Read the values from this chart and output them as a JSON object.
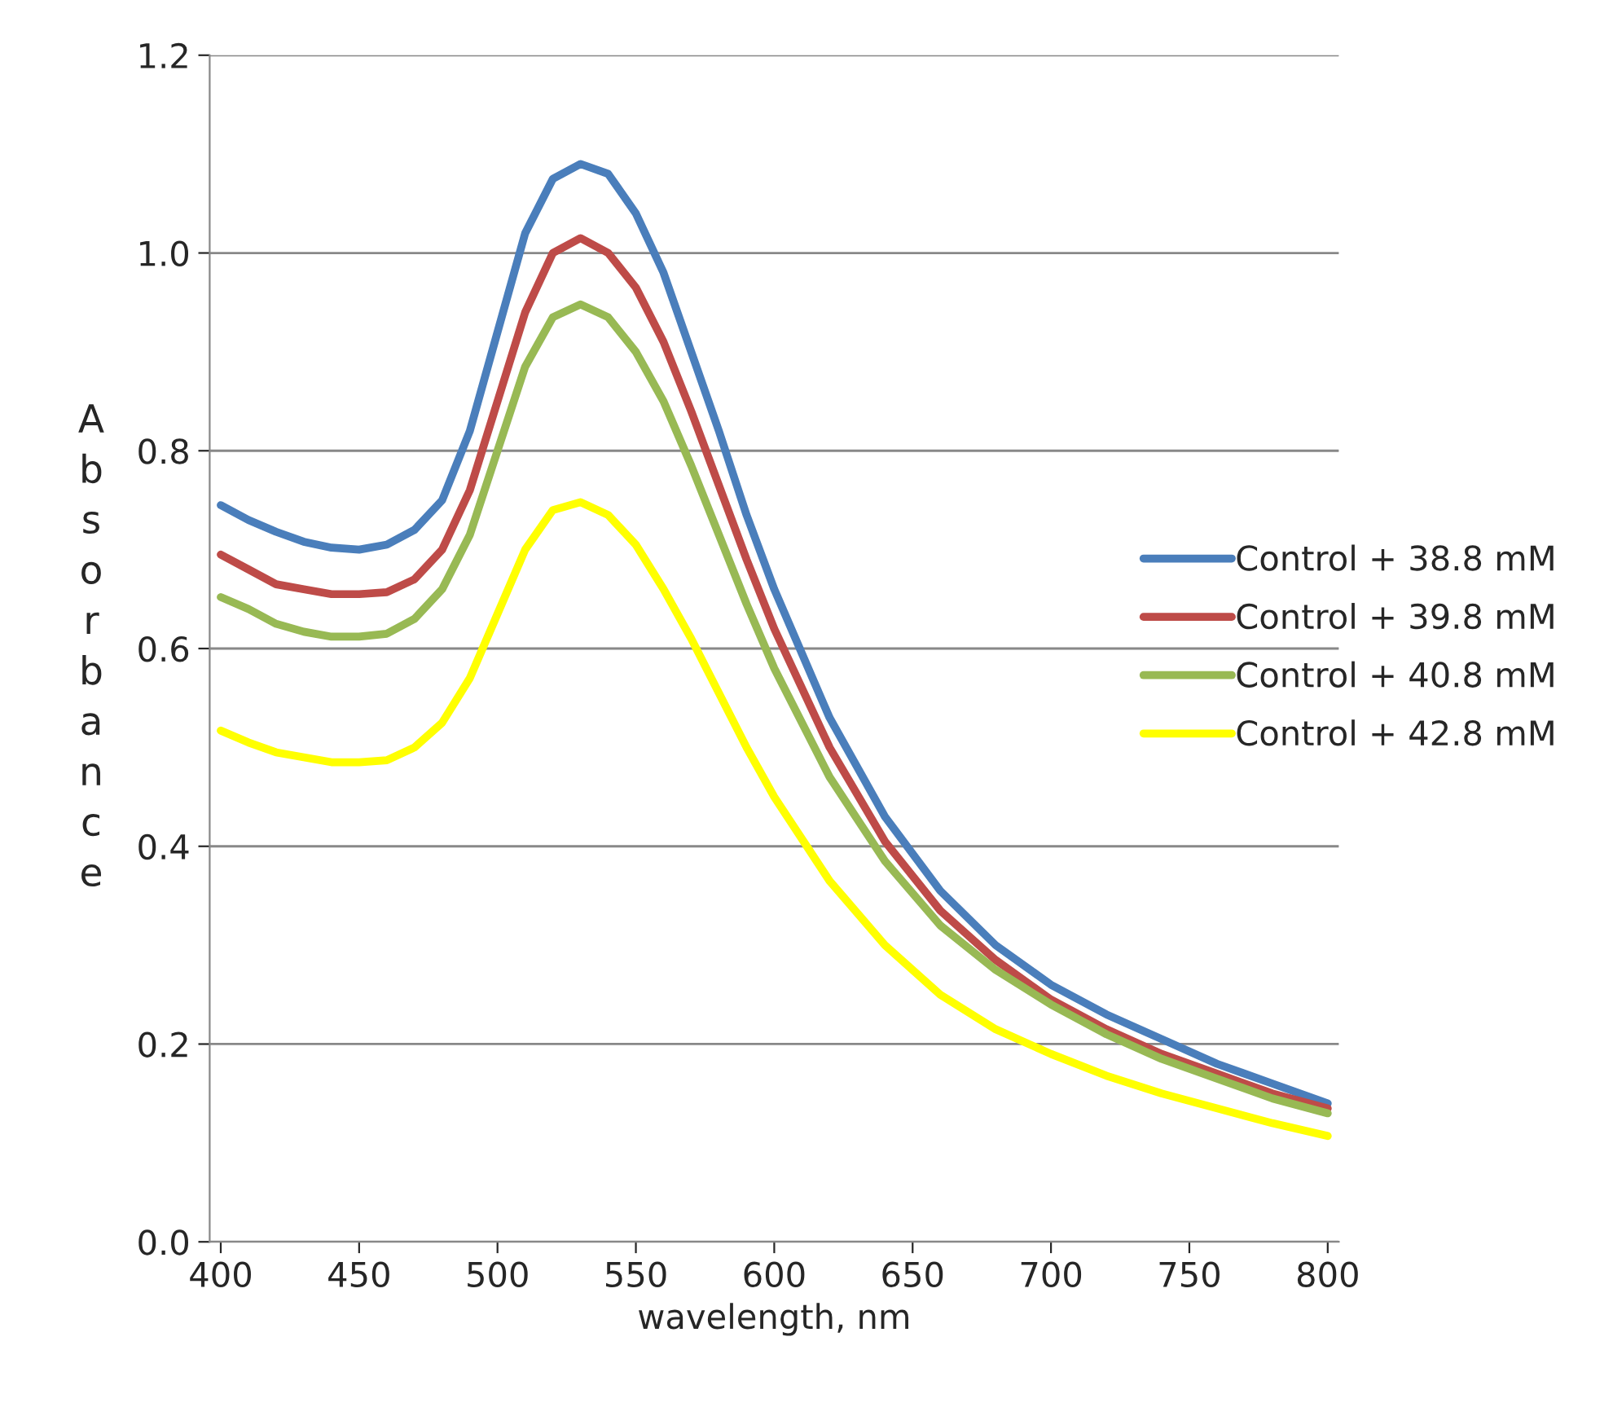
{
  "chart_data": {
    "type": "line",
    "xlabel": "wavelength, nm",
    "ylabel": "Absorbance",
    "x": [
      400,
      410,
      420,
      430,
      440,
      450,
      460,
      470,
      480,
      490,
      500,
      510,
      520,
      530,
      540,
      550,
      560,
      570,
      580,
      590,
      600,
      620,
      640,
      660,
      680,
      700,
      720,
      740,
      760,
      780,
      800
    ],
    "series": [
      {
        "name": "Control + 38.8 mM",
        "color": "#4a7ebb",
        "values": [
          0.745,
          0.73,
          0.718,
          0.708,
          0.702,
          0.7,
          0.705,
          0.72,
          0.75,
          0.82,
          0.92,
          1.02,
          1.075,
          1.09,
          1.08,
          1.04,
          0.98,
          0.9,
          0.82,
          0.735,
          0.66,
          0.53,
          0.43,
          0.355,
          0.3,
          0.26,
          0.23,
          0.205,
          0.18,
          0.16,
          0.14
        ]
      },
      {
        "name": "Control + 39.8 mM",
        "color": "#be4b48",
        "values": [
          0.695,
          0.68,
          0.665,
          0.66,
          0.655,
          0.655,
          0.657,
          0.67,
          0.7,
          0.76,
          0.85,
          0.94,
          1.0,
          1.015,
          1.0,
          0.965,
          0.91,
          0.84,
          0.765,
          0.69,
          0.62,
          0.5,
          0.405,
          0.335,
          0.285,
          0.245,
          0.215,
          0.19,
          0.17,
          0.15,
          0.135
        ]
      },
      {
        "name": "Control + 40.8 mM",
        "color": "#98b954",
        "values": [
          0.652,
          0.64,
          0.625,
          0.617,
          0.612,
          0.612,
          0.615,
          0.63,
          0.66,
          0.715,
          0.8,
          0.885,
          0.935,
          0.948,
          0.935,
          0.9,
          0.85,
          0.785,
          0.715,
          0.645,
          0.58,
          0.47,
          0.385,
          0.32,
          0.275,
          0.24,
          0.21,
          0.185,
          0.165,
          0.145,
          0.13
        ]
      },
      {
        "name": "Control + 42.8 mM",
        "color": "#ffff00",
        "values": [
          0.517,
          0.505,
          0.495,
          0.49,
          0.485,
          0.485,
          0.487,
          0.5,
          0.525,
          0.57,
          0.635,
          0.7,
          0.74,
          0.748,
          0.735,
          0.705,
          0.66,
          0.61,
          0.555,
          0.5,
          0.45,
          0.365,
          0.3,
          0.25,
          0.215,
          0.19,
          0.168,
          0.15,
          0.135,
          0.12,
          0.107
        ]
      }
    ],
    "xlim": [
      396,
      804
    ],
    "xticks": [
      400,
      450,
      500,
      550,
      600,
      650,
      700,
      750,
      800
    ],
    "ylim": [
      0,
      1.2
    ],
    "yticks": [
      {
        "value": 0,
        "label": "0.0"
      },
      {
        "value": 0.2,
        "label": "0.2"
      },
      {
        "value": 0.4,
        "label": "0.4"
      },
      {
        "value": 0.6,
        "label": "0.6"
      },
      {
        "value": 0.8,
        "label": "0.8"
      },
      {
        "value": 1.0,
        "label": "1.0"
      },
      {
        "value": 1.2,
        "label": "1.2"
      }
    ],
    "grid": "y",
    "legend": "right",
    "marker": "none",
    "line_style": "solid"
  }
}
